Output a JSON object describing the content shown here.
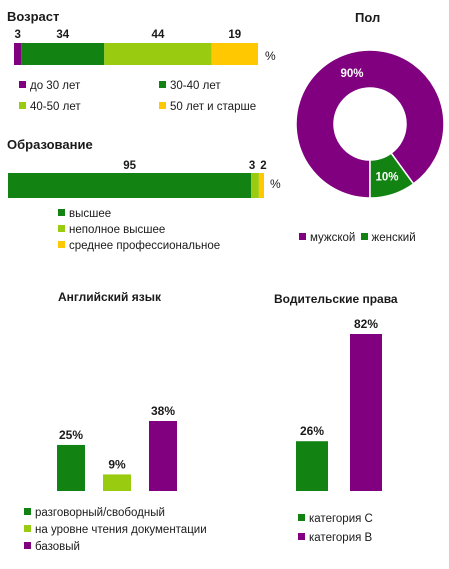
{
  "colors": {
    "purple": "#800080",
    "green": "#128312",
    "lightgreen": "#99cc11",
    "yellow": "#ffc800"
  },
  "chart_data": [
    {
      "type": "bar",
      "orientation": "horizontal-stacked",
      "title": "Возраст",
      "unit": "%",
      "series": [
        {
          "name": "до 30 лет",
          "values": [
            3
          ],
          "color": "#800080"
        },
        {
          "name": "30-40 лет",
          "values": [
            34
          ],
          "color": "#128312"
        },
        {
          "name": "40-50 лет",
          "values": [
            44
          ],
          "color": "#99cc11"
        },
        {
          "name": "50 лет и старше",
          "values": [
            19
          ],
          "color": "#ffc800"
        }
      ],
      "legend": "below"
    },
    {
      "type": "bar",
      "orientation": "horizontal-stacked",
      "title": "Образование",
      "unit": "%",
      "series": [
        {
          "name": "высшее",
          "values": [
            95
          ],
          "color": "#128312"
        },
        {
          "name": "неполное высшее",
          "values": [
            3
          ],
          "color": "#99cc11"
        },
        {
          "name": "среднее профессиональное",
          "values": [
            2
          ],
          "color": "#ffc800"
        }
      ],
      "legend": "below"
    },
    {
      "type": "pie",
      "title": "Пол",
      "slices": [
        {
          "name": "мужской",
          "value": 90,
          "label": "90%",
          "color": "#800080"
        },
        {
          "name": "женский",
          "value": 10,
          "label": "10%",
          "color": "#128312"
        }
      ],
      "legend": "bottom"
    },
    {
      "type": "bar",
      "title": "Английский язык",
      "series": [
        {
          "name": "разговорный/свободный",
          "values": [
            25
          ],
          "label": "25%",
          "color": "#128312"
        },
        {
          "name": "на уровне чтения документации",
          "values": [
            9
          ],
          "label": "9%",
          "color": "#99cc11"
        },
        {
          "name": "базовый",
          "values": [
            38
          ],
          "label": "38%",
          "color": "#800080"
        }
      ],
      "legend": "bottom"
    },
    {
      "type": "bar",
      "title": "Водительские права",
      "series": [
        {
          "name": "категория  С",
          "values": [
            26
          ],
          "label": "26%",
          "color": "#128312"
        },
        {
          "name": "категория  В",
          "values": [
            82
          ],
          "label": "82%",
          "color": "#800080"
        }
      ],
      "legend": "bottom"
    }
  ]
}
